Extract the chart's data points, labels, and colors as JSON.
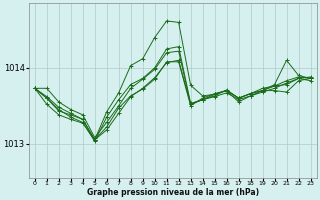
{
  "title": "Graphe pression niveau de la mer (hPa)",
  "bg_color": "#d6f0f0",
  "grid_color": "#b0c8c8",
  "line_color": "#1a6b1a",
  "marker_color": "#1a6b1a",
  "xlim": [
    -0.5,
    23.5
  ],
  "ylim": [
    1012.55,
    1014.85
  ],
  "yticks": [
    1013,
    1014
  ],
  "xticks": [
    0,
    1,
    2,
    3,
    4,
    5,
    6,
    7,
    8,
    9,
    10,
    11,
    12,
    13,
    14,
    15,
    16,
    17,
    18,
    19,
    20,
    21,
    22,
    23
  ],
  "series": [
    [
      1013.73,
      1013.62,
      1013.48,
      1013.4,
      1013.32,
      1013.05,
      1013.22,
      1013.47,
      1013.63,
      1013.72,
      1013.85,
      1014.08,
      1014.08,
      1013.5,
      1013.6,
      1013.66,
      1013.7,
      1013.6,
      1013.66,
      1013.7,
      1013.76,
      1013.83,
      1013.88,
      1013.86
    ],
    [
      1013.73,
      1013.6,
      1013.45,
      1013.35,
      1013.28,
      1013.03,
      1013.35,
      1013.58,
      1013.78,
      1013.86,
      1014.0,
      1014.25,
      1014.28,
      1013.53,
      1013.58,
      1013.63,
      1013.71,
      1013.6,
      1013.66,
      1013.7,
      1013.7,
      1013.68,
      1013.83,
      1013.86
    ],
    [
      1013.73,
      1013.73,
      1013.55,
      1013.45,
      1013.38,
      1013.08,
      1013.28,
      1013.5,
      1013.73,
      1013.85,
      1013.98,
      1014.2,
      1014.22,
      1013.52,
      1013.58,
      1013.65,
      1013.7,
      1013.6,
      1013.66,
      1013.73,
      1013.76,
      1013.78,
      1013.86,
      1013.88
    ],
    [
      1013.73,
      1013.6,
      1013.43,
      1013.38,
      1013.32,
      1013.05,
      1013.42,
      1013.67,
      1014.03,
      1014.12,
      1014.4,
      1014.62,
      1014.6,
      1013.77,
      1013.63,
      1013.65,
      1013.7,
      1013.55,
      1013.63,
      1013.7,
      1013.78,
      1014.1,
      1013.9,
      1013.86
    ],
    [
      1013.73,
      1013.52,
      1013.38,
      1013.32,
      1013.27,
      1013.05,
      1013.18,
      1013.4,
      1013.62,
      1013.73,
      1013.87,
      1014.07,
      1014.1,
      1013.52,
      1013.58,
      1013.62,
      1013.67,
      1013.58,
      1013.63,
      1013.68,
      1013.73,
      1013.8,
      1013.86,
      1013.83
    ]
  ]
}
